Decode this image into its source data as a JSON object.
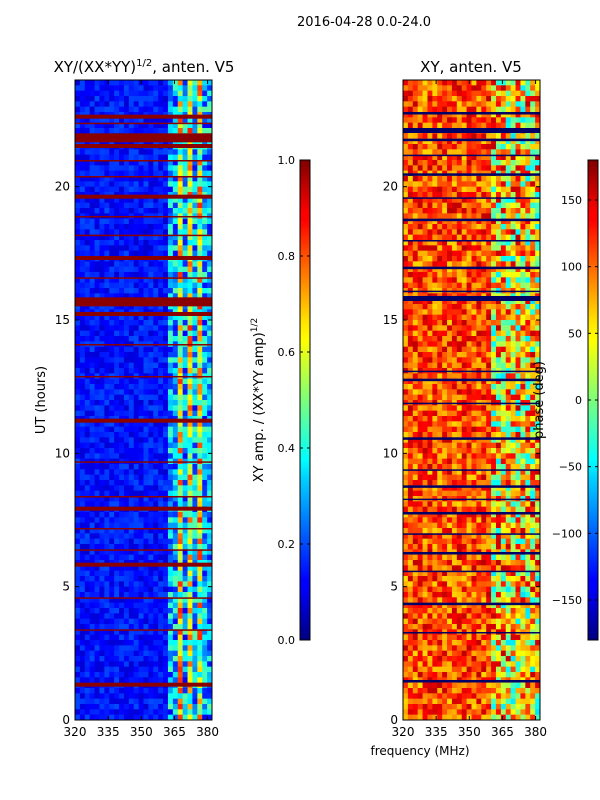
{
  "suptitle": "2016-04-28 0.0-24.0",
  "chart_data": [
    {
      "type": "heatmap",
      "title_prefix": "XY/(XX*YY)",
      "title_exp": "1/2",
      "title_suffix": ", anten. V5",
      "xlabel": "",
      "ylabel": "UT (hours)",
      "xlim": [
        320,
        382
      ],
      "ylim": [
        0,
        24
      ],
      "xticks": [
        "320",
        "335",
        "350",
        "365",
        "380"
      ],
      "xtick_values": [
        320,
        335,
        350,
        365,
        380
      ],
      "yticks": [
        "0",
        "5",
        "10",
        "15",
        "20"
      ],
      "ytick_values": [
        0,
        5,
        10,
        15,
        20
      ],
      "colormap": "jet",
      "colorbar": {
        "label_prefix": "XY amp. / (XX*YY amp)",
        "label_exp": "1/2",
        "range": [
          0.0,
          1.0
        ],
        "ticks": [
          "0.0",
          "0.2",
          "0.4",
          "0.6",
          "0.8",
          "1.0"
        ],
        "tick_values": [
          0.0,
          0.2,
          0.4,
          0.6,
          0.8,
          1.0
        ]
      }
    },
    {
      "type": "heatmap",
      "title_prefix": "XY, anten. V5",
      "title_exp": "",
      "title_suffix": "",
      "xlabel": "frequency (MHz)",
      "ylabel": "",
      "xlim": [
        320,
        382
      ],
      "ylim": [
        0,
        24
      ],
      "xticks": [
        "320",
        "335",
        "350",
        "365",
        "380"
      ],
      "xtick_values": [
        320,
        335,
        350,
        365,
        380
      ],
      "yticks": [
        "0",
        "5",
        "10",
        "15",
        "20"
      ],
      "ytick_values": [
        0,
        5,
        10,
        15,
        20
      ],
      "colormap": "jet",
      "colorbar": {
        "label_prefix": "phase (deg)",
        "label_exp": "",
        "range": [
          -180,
          180
        ],
        "ticks": [
          "−150",
          "−100",
          "−50",
          "0",
          "50",
          "100",
          "150"
        ],
        "tick_values": [
          -150,
          -100,
          -50,
          0,
          50,
          100,
          150
        ]
      }
    }
  ]
}
